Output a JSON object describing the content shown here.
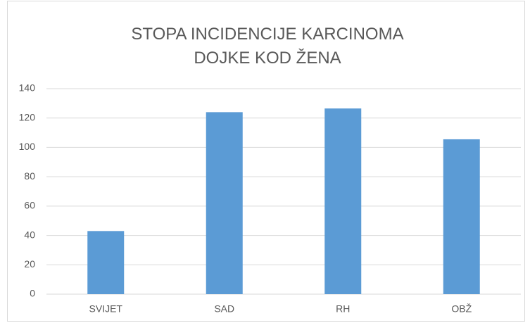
{
  "chart_data": {
    "type": "bar",
    "title": "STOPA INCIDENCIJE KARCINOMA DOJKE KOD ŽENA",
    "categories": [
      "SVIJET",
      "SAD",
      "RH",
      "OBŽ"
    ],
    "values": [
      43,
      124,
      126.5,
      105.5
    ],
    "color": "#5b9bd5",
    "ylim": [
      0,
      140
    ],
    "yticks": [
      0,
      20,
      40,
      60,
      80,
      100,
      120,
      140
    ],
    "grid": true
  }
}
